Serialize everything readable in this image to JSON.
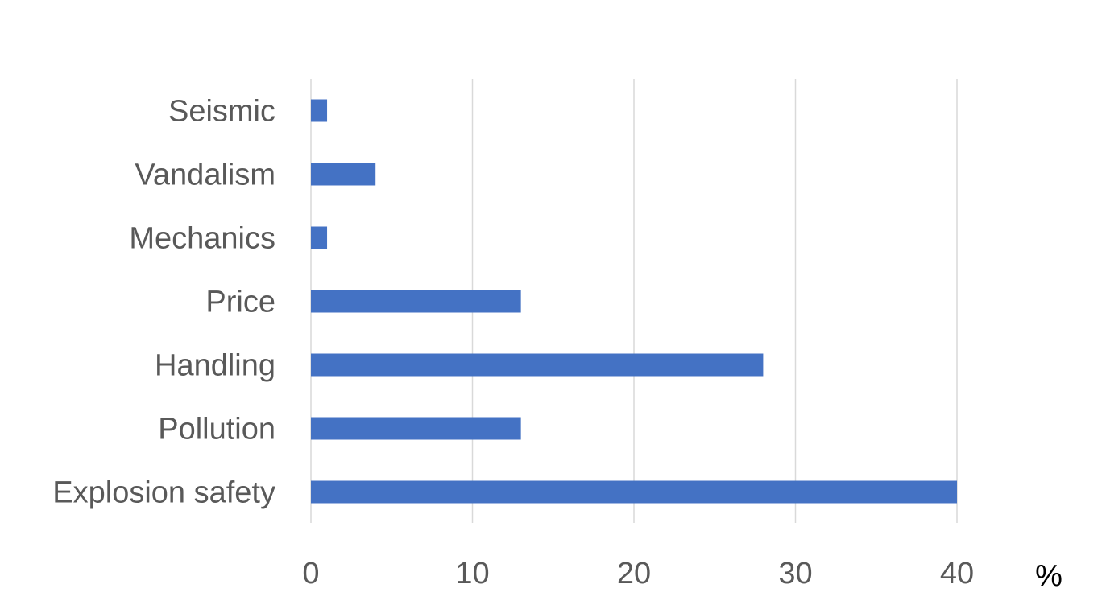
{
  "chart_data": {
    "type": "bar",
    "orientation": "horizontal",
    "categories": [
      "Seismic",
      "Vandalism",
      "Mechanics",
      "Price",
      "Handling",
      "Pollution",
      "Explosion safety"
    ],
    "values": [
      1,
      4,
      1,
      13,
      28,
      13,
      40
    ],
    "xlim": [
      0,
      40
    ],
    "xticks": [
      "0",
      "10",
      "20",
      "30",
      "40"
    ],
    "x_unit_label": "%",
    "title": "",
    "xlabel": "",
    "ylabel": "",
    "grid": "vertical",
    "legend": "none",
    "bar_color": "#4472C4",
    "grid_color": "#D9D9D9"
  }
}
